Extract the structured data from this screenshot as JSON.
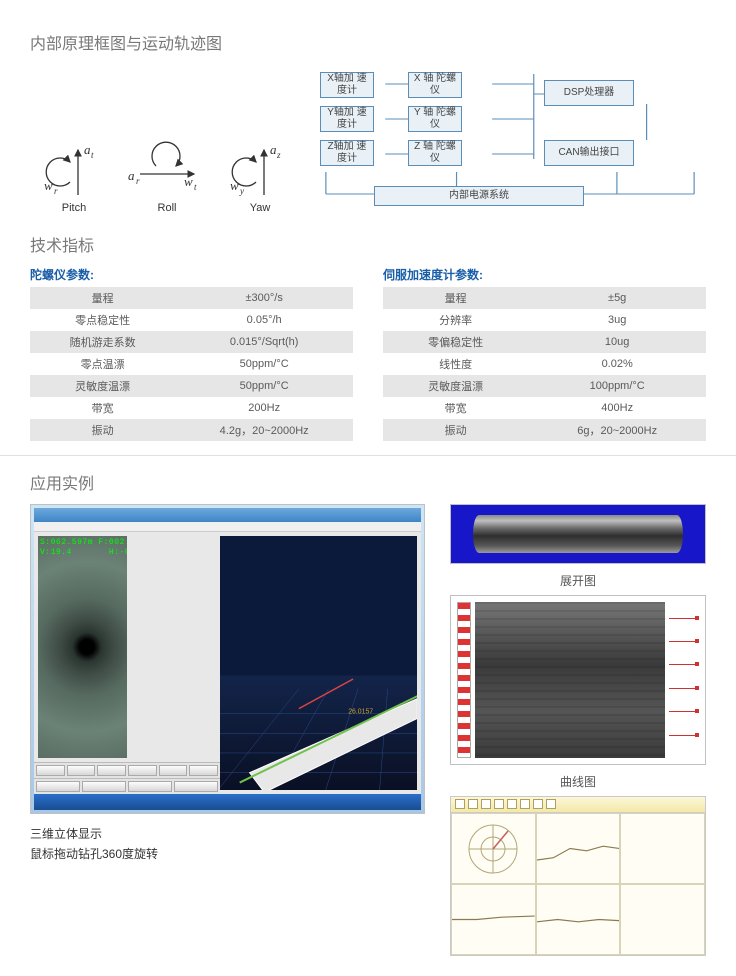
{
  "headings": {
    "principle": "内部原理框图与运动轨迹图",
    "specs": "技术指标",
    "application": "应用实例"
  },
  "axes": [
    {
      "top": "a",
      "top_sub": "t",
      "left": "w",
      "left_sub": "r",
      "label": "Pitch"
    },
    {
      "top": "a",
      "top_sub": "r",
      "right": "w",
      "right_sub": "t",
      "label": "Roll"
    },
    {
      "top": "a",
      "top_sub": "z",
      "left": "w",
      "left_sub": "y",
      "label": "Yaw"
    }
  ],
  "block_diagram": {
    "accel_boxes": [
      "X轴加\n速度计",
      "Y轴加\n速度计",
      "Z轴加\n速度计"
    ],
    "gyro_boxes": [
      "X 轴\n陀螺仪",
      "Y 轴\n陀螺仪",
      "Z 轴\n陀螺仪"
    ],
    "dsp": "DSP处理器",
    "can": "CAN输出接口",
    "power": "内部电源系统",
    "line_color": "#5a8db8",
    "box_bg": "#e9f1f7"
  },
  "spec_left": {
    "title": "陀螺仪参数:",
    "rows": [
      [
        "量程",
        "±300°/s"
      ],
      [
        "零点稳定性",
        "0.05°/h"
      ],
      [
        "随机游走系数",
        "0.015°/Sqrt(h)"
      ],
      [
        "零点温漂",
        "50ppm/°C"
      ],
      [
        "灵敏度温漂",
        "50ppm/°C"
      ],
      [
        "带宽",
        "200Hz"
      ],
      [
        "振动",
        "4.2g，20~2000Hz"
      ]
    ]
  },
  "spec_right": {
    "title": "伺服加速度计参数:",
    "rows": [
      [
        "量程",
        "±5g"
      ],
      [
        "分辨率",
        "3ug"
      ],
      [
        "零偏稳定性",
        "10ug"
      ],
      [
        "线性度",
        "0.02%"
      ],
      [
        "灵敏度温漂",
        "100ppm/°C"
      ],
      [
        "带宽",
        "400Hz"
      ],
      [
        "振动",
        "6g，20~2000Hz"
      ]
    ]
  },
  "osd": {
    "line1": "S:062.597m F:002.9",
    "line2": "V:19.4       H:-03.0"
  },
  "captions": {
    "threeD_1": "三维立体显示",
    "threeD_2": "鼠标拖动钻孔360度旋转",
    "unfold": "展开图",
    "curve": "曲线图"
  },
  "colors": {
    "heading": "#787878",
    "spec_head": "#1a5ea8",
    "row_alt": "#e6e6e6",
    "cylinder_bg": "#1717c9",
    "diagram_line": "#5a8db8"
  },
  "spec_styling": {
    "odd_row_bg": "#e6e6e6",
    "even_row_bg": "#ffffff",
    "font_size_pt": 8,
    "text_color": "#5a5a5a"
  }
}
